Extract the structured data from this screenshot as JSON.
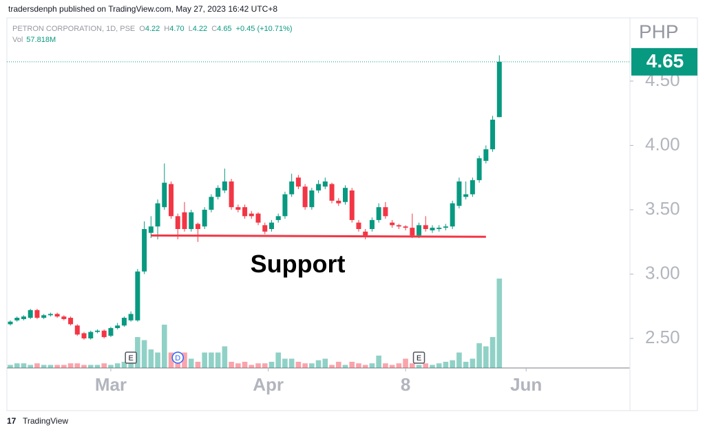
{
  "header": {
    "byline": "tradersdenph published on TradingView.com, May 27, 2023 16:42 UTC+8",
    "footer": "TradingView"
  },
  "chart_data": {
    "type": "candlestick",
    "legend": {
      "symbol": "PETRON CORPORATION, 1D, PSE",
      "items": [
        {
          "key": "O",
          "value": "4.22"
        },
        {
          "key": "H",
          "value": "4.70"
        },
        {
          "key": "L",
          "value": "4.22"
        },
        {
          "key": "C",
          "value": "4.65"
        }
      ],
      "change": "+0.45 (+10.71%)",
      "volume_key": "Vol",
      "volume_value": "57.818M"
    },
    "currency": "PHP",
    "up_color": "#089981",
    "down_color": "#f23645",
    "open": [
      2.61,
      2.64,
      2.65,
      2.66,
      2.72,
      2.66,
      2.68,
      2.69,
      2.67,
      2.66,
      2.6,
      2.54,
      2.5,
      2.55,
      2.56,
      2.52,
      2.58,
      2.6,
      2.64,
      2.64,
      3.02,
      3.32,
      3.37,
      3.52,
      3.7,
      3.45,
      3.48,
      3.35,
      3.39,
      3.37,
      3.5,
      3.6,
      3.65,
      3.72,
      3.52,
      3.52,
      3.47,
      3.47,
      3.38,
      3.35,
      3.42,
      3.45,
      3.62,
      3.75,
      3.68,
      3.52,
      3.65,
      3.68,
      3.7,
      3.57,
      3.56,
      3.65,
      3.4,
      3.33,
      3.35,
      3.42,
      3.52,
      3.4,
      3.38,
      3.37,
      3.36,
      3.3,
      3.38,
      3.34,
      3.35,
      3.36,
      3.37,
      3.53,
      3.6,
      3.62,
      3.73,
      3.88,
      3.97,
      4.22
    ],
    "high": [
      2.64,
      2.67,
      2.68,
      2.73,
      2.73,
      2.69,
      2.7,
      2.7,
      2.68,
      2.67,
      2.61,
      2.55,
      2.56,
      2.57,
      2.57,
      2.59,
      2.62,
      2.67,
      2.71,
      3.04,
      3.41,
      3.45,
      3.58,
      3.86,
      3.72,
      3.47,
      3.56,
      3.5,
      3.4,
      3.52,
      3.62,
      3.69,
      3.82,
      3.74,
      3.54,
      3.54,
      3.49,
      3.48,
      3.4,
      3.42,
      3.47,
      3.64,
      3.78,
      3.77,
      3.7,
      3.67,
      3.73,
      3.75,
      3.71,
      3.59,
      3.69,
      3.67,
      3.42,
      3.35,
      3.44,
      3.55,
      3.56,
      3.42,
      3.39,
      3.38,
      3.47,
      3.4,
      3.45,
      3.38,
      3.38,
      3.39,
      3.57,
      3.75,
      3.72,
      3.75,
      3.92,
      4.0,
      4.23,
      4.7
    ],
    "low": [
      2.6,
      2.63,
      2.64,
      2.65,
      2.65,
      2.65,
      2.67,
      2.66,
      2.64,
      2.6,
      2.52,
      2.49,
      2.49,
      2.54,
      2.5,
      2.51,
      2.57,
      2.59,
      2.63,
      2.63,
      3.0,
      3.28,
      3.27,
      3.5,
      3.43,
      3.27,
      3.33,
      3.33,
      3.25,
      3.35,
      3.48,
      3.58,
      3.63,
      3.5,
      3.48,
      3.43,
      3.43,
      3.38,
      3.31,
      3.33,
      3.4,
      3.43,
      3.6,
      3.66,
      3.5,
      3.5,
      3.63,
      3.66,
      3.55,
      3.53,
      3.54,
      3.4,
      3.33,
      3.27,
      3.33,
      3.4,
      3.43,
      3.36,
      3.35,
      3.34,
      3.28,
      3.28,
      3.33,
      3.32,
      3.33,
      3.34,
      3.35,
      3.51,
      3.58,
      3.6,
      3.71,
      3.86,
      3.95,
      4.22
    ],
    "close": [
      2.63,
      2.66,
      2.67,
      2.72,
      2.66,
      2.68,
      2.69,
      2.67,
      2.65,
      2.61,
      2.53,
      2.5,
      2.55,
      2.56,
      2.51,
      2.58,
      2.6,
      2.66,
      2.69,
      3.02,
      3.35,
      3.37,
      3.55,
      3.71,
      3.45,
      3.35,
      3.35,
      3.48,
      3.35,
      3.5,
      3.6,
      3.67,
      3.72,
      3.52,
      3.5,
      3.45,
      3.45,
      3.4,
      3.33,
      3.4,
      3.45,
      3.62,
      3.72,
      3.68,
      3.52,
      3.65,
      3.7,
      3.72,
      3.57,
      3.55,
      3.67,
      3.42,
      3.35,
      3.3,
      3.42,
      3.52,
      3.45,
      3.38,
      3.37,
      3.36,
      3.3,
      3.38,
      3.35,
      3.36,
      3.36,
      3.37,
      3.55,
      3.72,
      3.62,
      3.73,
      3.9,
      3.97,
      4.2,
      4.65
    ],
    "volume": [
      2,
      3,
      3,
      2,
      3,
      2,
      2,
      2,
      2,
      3,
      3,
      2,
      2,
      2,
      3,
      2,
      3,
      4,
      3,
      20,
      18,
      12,
      10,
      28,
      10,
      8,
      10,
      6,
      4,
      10,
      10,
      10,
      14,
      4,
      3,
      4,
      2,
      3,
      3,
      4,
      10,
      6,
      6,
      4,
      3,
      3,
      5,
      6,
      2,
      4,
      2,
      4,
      3,
      2,
      3,
      8,
      3,
      2,
      3,
      6,
      3,
      2,
      3,
      2,
      3,
      4,
      5,
      10,
      4,
      6,
      16,
      14,
      20,
      57.818
    ],
    "ylim": [
      2.27,
      4.97
    ],
    "yticks": [
      {
        "value": 2.5,
        "label": "2.50"
      },
      {
        "value": 3,
        "label": "3.00"
      },
      {
        "value": 3.5,
        "label": "3.50"
      },
      {
        "value": 4,
        "label": "4.00"
      },
      {
        "value": 4.5,
        "label": "4.50"
      }
    ],
    "xticks": [
      {
        "value": 15,
        "label": "Mar"
      },
      {
        "value": 38.5,
        "label": "Apr"
      },
      {
        "value": 59,
        "label": "8"
      },
      {
        "value": 77,
        "label": "Jun"
      }
    ],
    "events": [
      {
        "index": 18,
        "label": "E",
        "style": "box"
      },
      {
        "index": 25,
        "label": "D",
        "style": "circle"
      },
      {
        "index": 61,
        "label": "E",
        "style": "box"
      }
    ],
    "annotation": {
      "text": "Support",
      "from": 21,
      "to": 71,
      "from_price": 3.3,
      "to_price": 3.29,
      "color": "#f23645"
    }
  }
}
